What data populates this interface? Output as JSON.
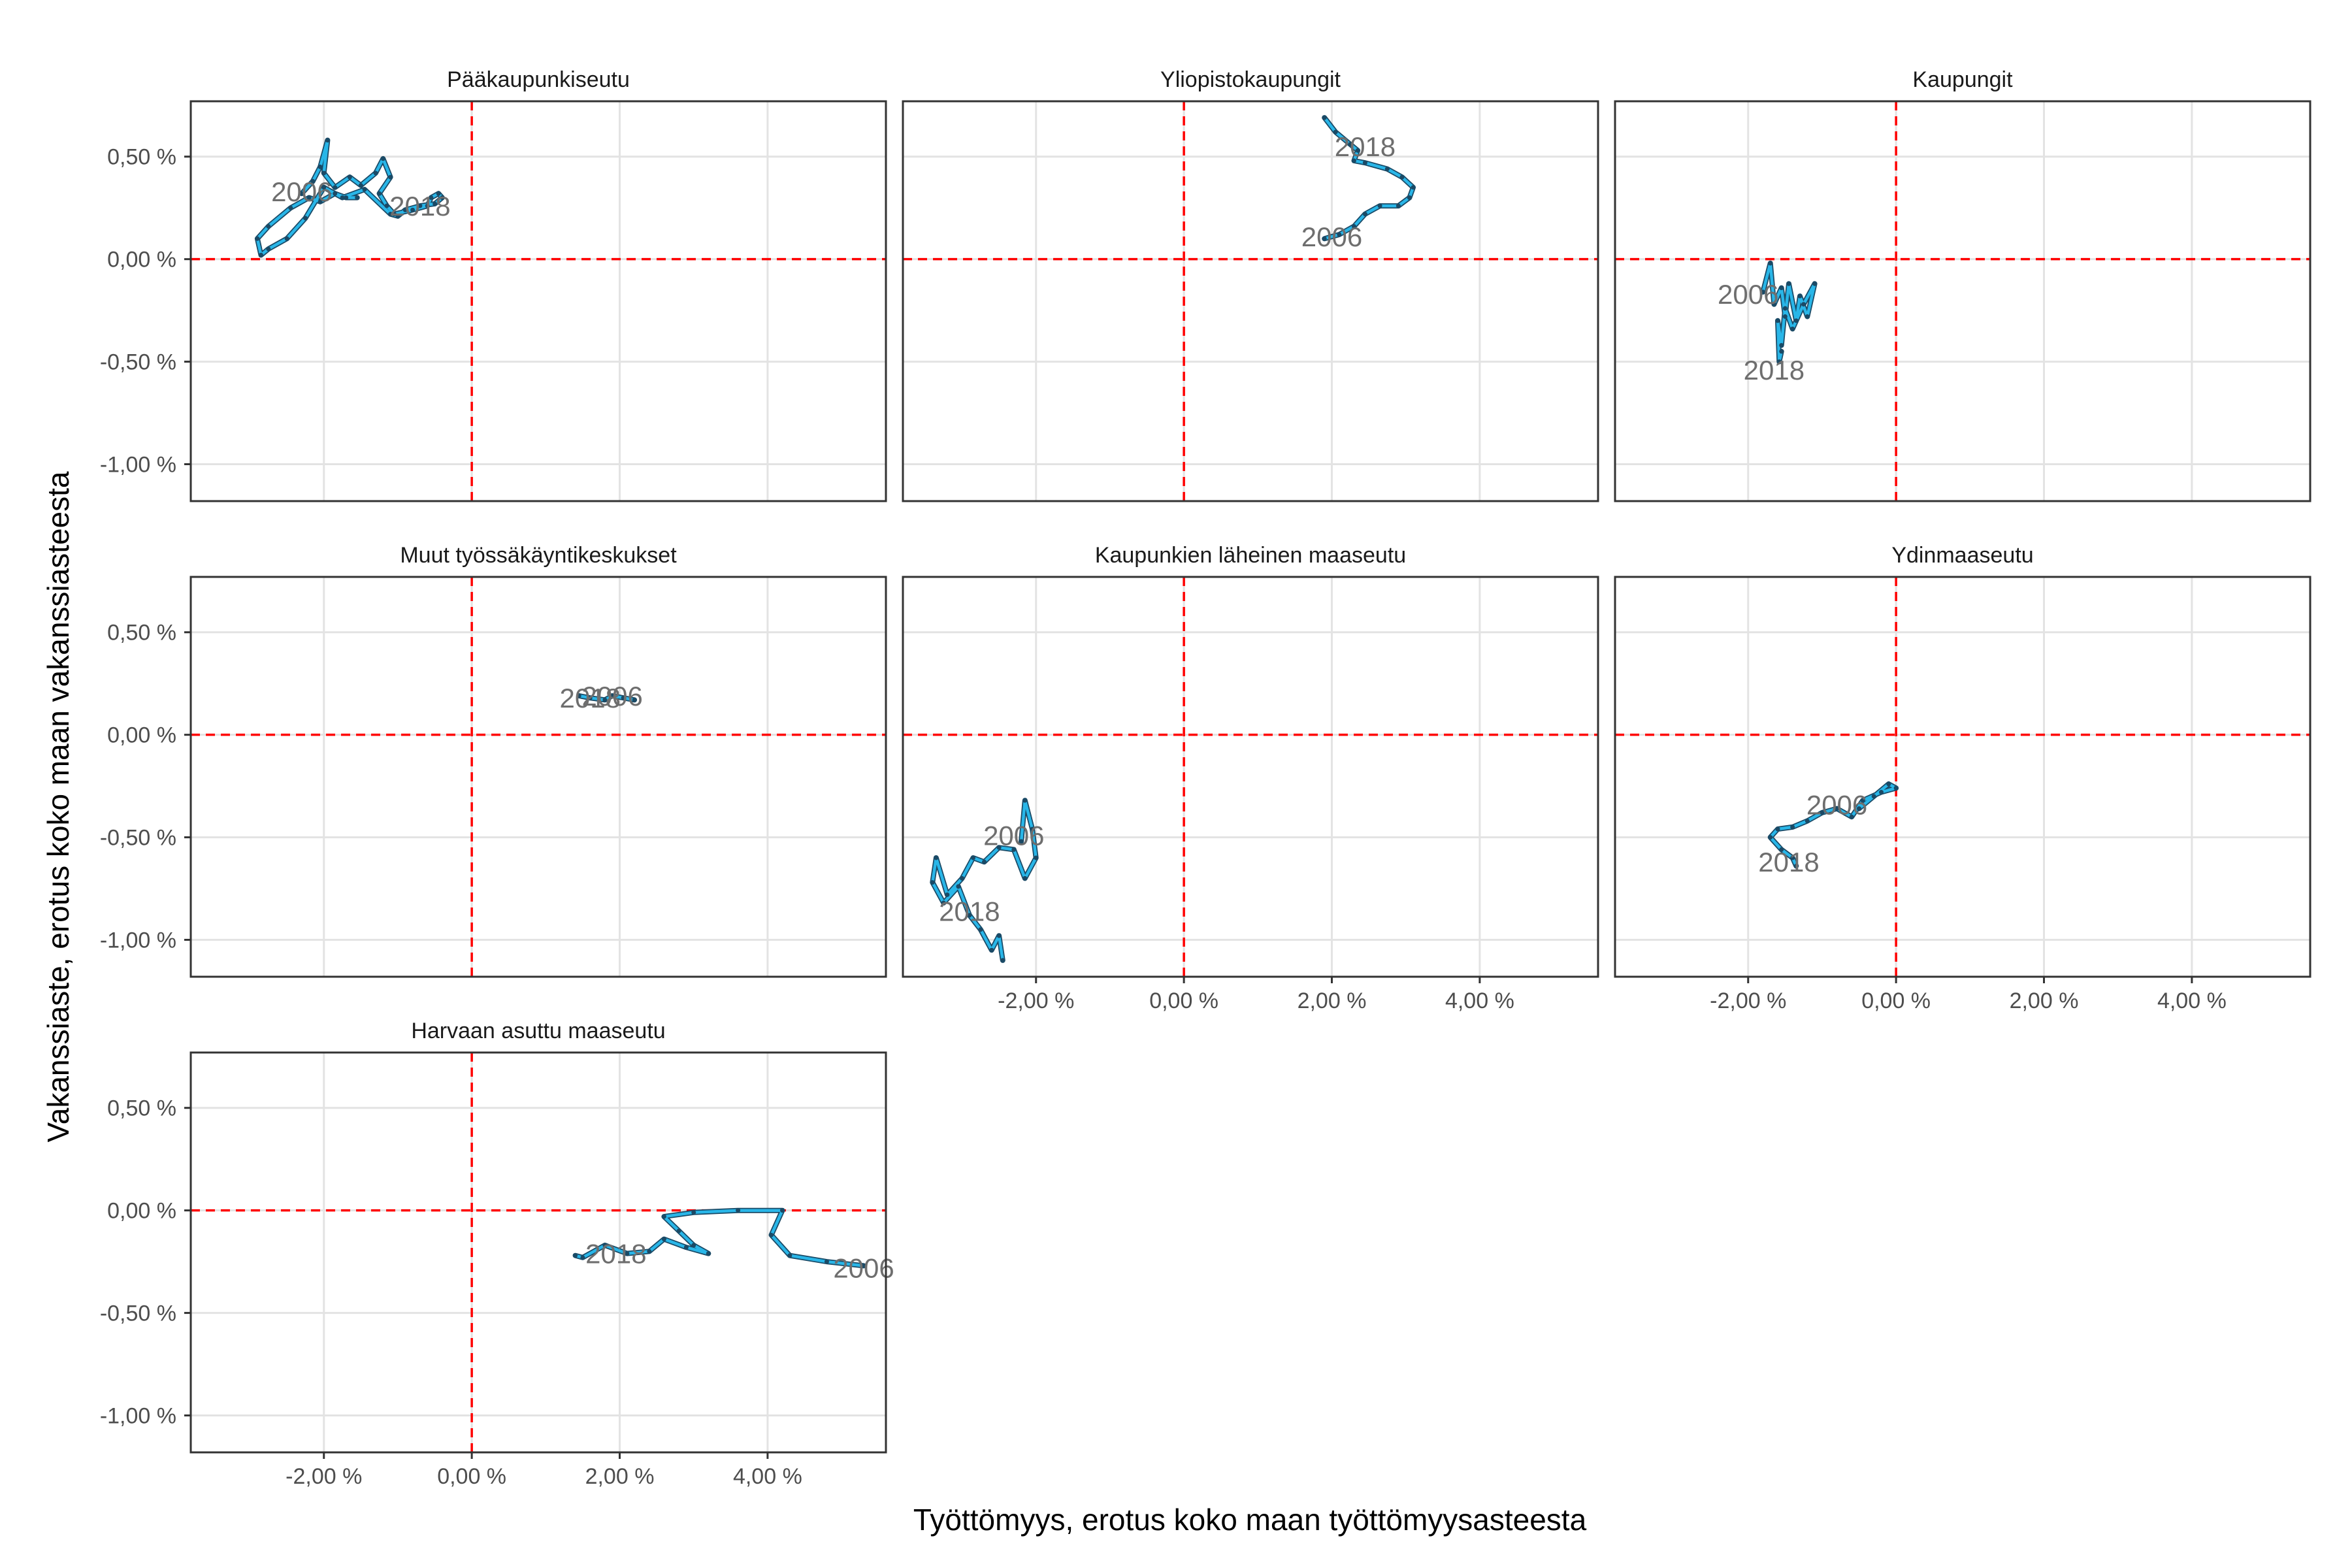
{
  "chart_data": {
    "type": "line",
    "xlabel": "Työttömyys, erotus koko maan työttömyysasteesta",
    "ylabel": "Vakanssiaste, erotus koko maan vakanssiasteesta",
    "xlim": [
      -3.8,
      5.6
    ],
    "ylim": [
      -1.18,
      0.77
    ],
    "x_ticks": [
      -2,
      0,
      2,
      4
    ],
    "x_tick_labels": [
      "-2,00 %",
      "0,00 %",
      "2,00 %",
      "4,00 %"
    ],
    "y_ticks": [
      0.5,
      0,
      -0.5,
      -1
    ],
    "y_tick_labels": [
      "0,50 %",
      "0,00 %",
      "-0,50 %",
      "-1,00 %"
    ],
    "reference_lines": {
      "x": 0,
      "y": 0,
      "color": "#ff0000",
      "style": "dashed"
    },
    "grid": true,
    "colors": {
      "path": "#29b6e8",
      "path_outline": "#1a4a66",
      "reference": "#ff0000"
    },
    "panels": [
      {
        "title": "Pääkaupunkiseutu",
        "start_label": "2006",
        "end_label": "2018",
        "path": [
          [
            -2.3,
            0.32
          ],
          [
            -2.15,
            0.38
          ],
          [
            -2.05,
            0.45
          ],
          [
            -1.95,
            0.58
          ],
          [
            -2.0,
            0.42
          ],
          [
            -1.85,
            0.35
          ],
          [
            -1.65,
            0.4
          ],
          [
            -1.5,
            0.36
          ],
          [
            -1.3,
            0.42
          ],
          [
            -1.2,
            0.49
          ],
          [
            -1.1,
            0.4
          ],
          [
            -1.25,
            0.32
          ],
          [
            -1.15,
            0.26
          ],
          [
            -1.05,
            0.22
          ],
          [
            -0.8,
            0.24
          ],
          [
            -0.6,
            0.26
          ],
          [
            -0.55,
            0.3
          ],
          [
            -0.45,
            0.32
          ],
          [
            -0.4,
            0.3
          ],
          [
            -0.5,
            0.27
          ],
          [
            -0.7,
            0.26
          ],
          [
            -0.9,
            0.24
          ],
          [
            -1.0,
            0.21
          ],
          [
            -1.1,
            0.22
          ],
          [
            -1.45,
            0.34
          ],
          [
            -1.75,
            0.3
          ],
          [
            -2.0,
            0.35
          ],
          [
            -2.25,
            0.2
          ],
          [
            -2.5,
            0.1
          ],
          [
            -2.75,
            0.05
          ],
          [
            -2.85,
            0.02
          ],
          [
            -2.9,
            0.1
          ],
          [
            -2.75,
            0.16
          ],
          [
            -2.45,
            0.25
          ],
          [
            -2.2,
            0.3
          ],
          [
            -2.05,
            0.28
          ],
          [
            -1.85,
            0.32
          ],
          [
            -1.7,
            0.3
          ],
          [
            -1.55,
            0.3
          ]
        ],
        "label_positions": {
          "start": [
            -2.3,
            0.33
          ],
          "end": [
            -0.7,
            0.26
          ]
        }
      },
      {
        "title": "Yliopistokaupungit",
        "start_label": "2006",
        "end_label": "2018",
        "path": [
          [
            1.9,
            0.1
          ],
          [
            2.1,
            0.12
          ],
          [
            2.3,
            0.16
          ],
          [
            2.45,
            0.22
          ],
          [
            2.65,
            0.26
          ],
          [
            2.9,
            0.26
          ],
          [
            3.05,
            0.3
          ],
          [
            3.1,
            0.35
          ],
          [
            2.95,
            0.4
          ],
          [
            2.75,
            0.44
          ],
          [
            2.45,
            0.47
          ],
          [
            2.3,
            0.48
          ],
          [
            2.35,
            0.53
          ],
          [
            2.25,
            0.56
          ],
          [
            2.05,
            0.62
          ],
          [
            1.9,
            0.69
          ]
        ],
        "label_positions": {
          "start": [
            2.0,
            0.11
          ],
          "end": [
            2.45,
            0.55
          ]
        }
      },
      {
        "title": "Kaupungit",
        "start_label": "2006",
        "end_label": "2018",
        "path": [
          [
            -1.8,
            -0.16
          ],
          [
            -1.7,
            -0.02
          ],
          [
            -1.65,
            -0.22
          ],
          [
            -1.55,
            -0.14
          ],
          [
            -1.5,
            -0.28
          ],
          [
            -1.45,
            -0.12
          ],
          [
            -1.35,
            -0.3
          ],
          [
            -1.3,
            -0.18
          ],
          [
            -1.2,
            -0.28
          ],
          [
            -1.1,
            -0.12
          ],
          [
            -1.25,
            -0.22
          ],
          [
            -1.4,
            -0.34
          ],
          [
            -1.5,
            -0.24
          ],
          [
            -1.55,
            -0.42
          ],
          [
            -1.6,
            -0.3
          ],
          [
            -1.58,
            -0.5
          ],
          [
            -1.55,
            -0.45
          ]
        ],
        "label_positions": {
          "start": [
            -2.0,
            -0.17
          ],
          "end": [
            -1.65,
            -0.54
          ]
        }
      },
      {
        "title": "Muut työssäkäyntikeskukset",
        "start_label": "2006",
        "end_label": "2018",
        "path": [
          [
            1.45,
            0.19
          ],
          [
            1.6,
            0.18
          ],
          [
            1.8,
            0.17
          ],
          [
            1.9,
            0.19
          ],
          [
            2.05,
            0.18
          ],
          [
            2.2,
            0.17
          ]
        ],
        "label_positions": {
          "start": [
            1.9,
            0.19
          ],
          "end": [
            1.6,
            0.18
          ]
        }
      },
      {
        "title": "Kaupunkien läheinen maaseutu",
        "start_label": "2006",
        "end_label": "2018",
        "path": [
          [
            -2.2,
            -0.52
          ],
          [
            -2.15,
            -0.32
          ],
          [
            -2.05,
            -0.46
          ],
          [
            -2.0,
            -0.6
          ],
          [
            -2.15,
            -0.7
          ],
          [
            -2.3,
            -0.56
          ],
          [
            -2.5,
            -0.55
          ],
          [
            -2.7,
            -0.62
          ],
          [
            -2.85,
            -0.6
          ],
          [
            -3.0,
            -0.7
          ],
          [
            -3.2,
            -0.78
          ],
          [
            -3.35,
            -0.6
          ],
          [
            -3.4,
            -0.72
          ],
          [
            -3.25,
            -0.82
          ],
          [
            -3.05,
            -0.74
          ],
          [
            -2.9,
            -0.88
          ],
          [
            -2.75,
            -0.95
          ],
          [
            -2.6,
            -1.05
          ],
          [
            -2.5,
            -0.98
          ],
          [
            -2.45,
            -1.1
          ]
        ],
        "label_positions": {
          "start": [
            -2.3,
            -0.49
          ],
          "end": [
            -2.9,
            -0.86
          ]
        }
      },
      {
        "title": "Ydinmaaseutu",
        "start_label": "2006",
        "end_label": "2018",
        "path": [
          [
            -0.5,
            -0.36
          ],
          [
            -0.3,
            -0.3
          ],
          [
            -0.1,
            -0.24
          ],
          [
            0.0,
            -0.26
          ],
          [
            -0.2,
            -0.28
          ],
          [
            -0.45,
            -0.32
          ],
          [
            -0.6,
            -0.4
          ],
          [
            -0.8,
            -0.36
          ],
          [
            -1.0,
            -0.38
          ],
          [
            -1.2,
            -0.42
          ],
          [
            -1.4,
            -0.45
          ],
          [
            -1.6,
            -0.46
          ],
          [
            -1.7,
            -0.5
          ],
          [
            -1.55,
            -0.56
          ],
          [
            -1.4,
            -0.6
          ],
          [
            -1.35,
            -0.64
          ]
        ],
        "label_positions": {
          "start": [
            -0.8,
            -0.34
          ],
          "end": [
            -1.45,
            -0.62
          ]
        }
      },
      {
        "title": "Harvaan asuttu maaseutu",
        "start_label": "2006",
        "end_label": "2018",
        "path": [
          [
            5.3,
            -0.27
          ],
          [
            4.8,
            -0.25
          ],
          [
            4.3,
            -0.22
          ],
          [
            4.05,
            -0.12
          ],
          [
            4.2,
            0.0
          ],
          [
            3.6,
            0.0
          ],
          [
            3.0,
            -0.01
          ],
          [
            2.6,
            -0.03
          ],
          [
            2.8,
            -0.1
          ],
          [
            3.0,
            -0.17
          ],
          [
            3.2,
            -0.21
          ],
          [
            2.9,
            -0.18
          ],
          [
            2.6,
            -0.14
          ],
          [
            2.4,
            -0.2
          ],
          [
            2.1,
            -0.21
          ],
          [
            1.8,
            -0.17
          ],
          [
            1.5,
            -0.23
          ],
          [
            1.4,
            -0.22
          ]
        ],
        "label_positions": {
          "start": [
            5.3,
            -0.28
          ],
          "end": [
            1.95,
            -0.21
          ]
        }
      }
    ]
  }
}
